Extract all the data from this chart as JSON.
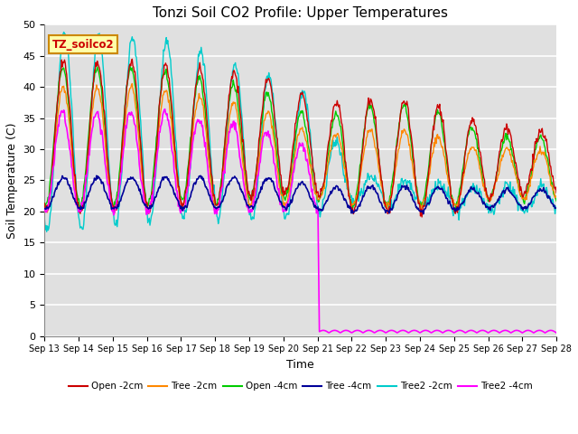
{
  "title": "Tonzi Soil CO2 Profile: Upper Temperatures",
  "xlabel": "Time",
  "ylabel": "Soil Temperature (C)",
  "ylim": [
    0,
    50
  ],
  "background_color": "#e0e0e0",
  "grid_color": "#ffffff",
  "series": {
    "Open_2cm": {
      "color": "#cc0000",
      "label": "Open -2cm"
    },
    "Tree_2cm": {
      "color": "#ff8800",
      "label": "Tree -2cm"
    },
    "Open_4cm": {
      "color": "#00cc00",
      "label": "Open -4cm"
    },
    "Tree_4cm": {
      "color": "#000099",
      "label": "Tree -4cm"
    },
    "Tree2_2cm": {
      "color": "#00cccc",
      "label": "Tree2 -2cm"
    },
    "Tree2_4cm": {
      "color": "#ff00ff",
      "label": "Tree2 -4cm"
    }
  },
  "xtick_labels": [
    "Sep 13",
    "Sep 14",
    "Sep 15",
    "Sep 16",
    "Sep 17",
    "Sep 18",
    "Sep 19",
    "Sep 20",
    "Sep 21",
    "Sep 22",
    "Sep 23",
    "Sep 24",
    "Sep 25",
    "Sep 26",
    "Sep 27",
    "Sep 28"
  ],
  "ytick_labels": [
    0,
    5,
    10,
    15,
    20,
    25,
    30,
    35,
    40,
    45,
    50
  ],
  "watermark_text": "TZ_soilco2",
  "watermark_bg": "#ffffaa",
  "watermark_border": "#cc8800"
}
